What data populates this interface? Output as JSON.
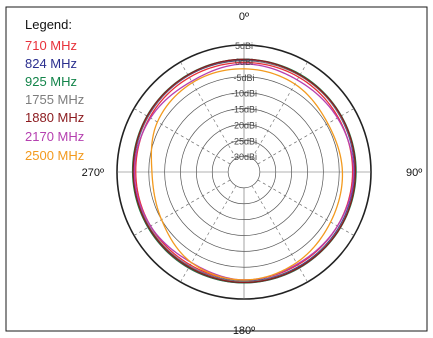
{
  "chart_data": {
    "type": "polar-line",
    "legend": {
      "title": "Legend:",
      "placement": "top-left",
      "entries": [
        {
          "label": "710 MHz",
          "color": "#e8313a"
        },
        {
          "label": "824 MHz",
          "color": "#2b2f8f"
        },
        {
          "label": "925 MHz",
          "color": "#13844a"
        },
        {
          "label": "1755 MHz",
          "color": "#7d7d7d"
        },
        {
          "label": "1880 MHz",
          "color": "#8b1a1e"
        },
        {
          "label": "2170 MHz",
          "color": "#b540b0"
        },
        {
          "label": "2500 MHz",
          "color": "#f39a1e"
        }
      ]
    },
    "angle_labels": [
      "0º",
      "90º",
      "180º",
      "270º"
    ],
    "radial_axis": {
      "unit": "dBi",
      "range": [
        -35,
        5
      ],
      "ticks": [
        5,
        0,
        -5,
        -10,
        -15,
        -20,
        -25,
        -30
      ],
      "tick_labels": [
        "5dBi",
        "0dBi",
        "-5dBi",
        "-10dBi",
        "-15dBi",
        "-20dBi",
        "-25dBi",
        "-30dBi"
      ]
    },
    "grid": true,
    "angle_grid_deg": [
      0,
      30,
      60,
      90,
      120,
      150,
      180,
      210,
      240,
      270,
      300,
      330
    ],
    "theta": [
      0,
      30,
      60,
      90,
      120,
      150,
      180,
      210,
      240,
      270,
      300,
      330
    ],
    "series": [
      {
        "name": "710 MHz",
        "color": "#e8313a",
        "values": [
          -0.5,
          -0.5,
          -0.7,
          -0.8,
          -1.0,
          -1.2,
          -1.0,
          -1.2,
          -1.0,
          -0.9,
          -0.7,
          -0.6
        ]
      },
      {
        "name": "824 MHz",
        "color": "#2b2f8f",
        "values": [
          0.3,
          0.3,
          0.0,
          -0.2,
          -0.4,
          -0.6,
          -0.6,
          -0.7,
          -0.5,
          -0.3,
          -0.1,
          0.1
        ]
      },
      {
        "name": "925 MHz",
        "color": "#13844a",
        "values": [
          0.5,
          0.5,
          0.4,
          0.3,
          0.1,
          -0.2,
          -0.1,
          -0.2,
          -0.1,
          0.1,
          0.3,
          0.4
        ]
      },
      {
        "name": "1755 MHz",
        "color": "#7d7d7d",
        "values": [
          0.4,
          0.2,
          0.1,
          0.0,
          -0.2,
          -0.4,
          -0.5,
          -0.6,
          -0.5,
          -0.2,
          0.0,
          0.2
        ]
      },
      {
        "name": "1880 MHz",
        "color": "#8b1a1e",
        "values": [
          0.5,
          0.3,
          0.3,
          0.1,
          0.0,
          -0.3,
          -0.2,
          -0.4,
          -0.3,
          -0.1,
          0.2,
          0.3
        ]
      },
      {
        "name": "2170 MHz",
        "color": "#b540b0",
        "values": [
          -1.0,
          -1.5,
          -1.0,
          -0.5,
          -1.0,
          -1.5,
          -1.0,
          -2.0,
          -1.0,
          -0.5,
          -1.0,
          -2.0
        ]
      },
      {
        "name": "2500 MHz",
        "color": "#f39a1e",
        "values": [
          -2.5,
          -3.0,
          -4.5,
          -4.0,
          -3.5,
          -2.0,
          -1.0,
          -2.0,
          -5.0,
          -6.0,
          -3.5,
          -2.5
        ]
      }
    ]
  }
}
